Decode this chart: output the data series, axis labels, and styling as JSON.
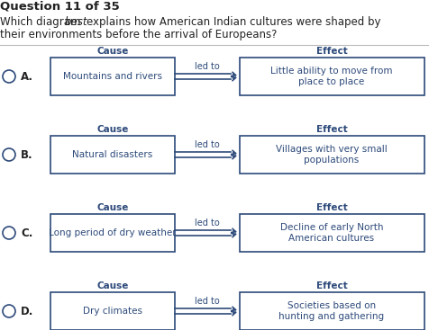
{
  "title": "Question 11 of 35",
  "background_color": "#ffffff",
  "box_edge_color": "#2d4a7a",
  "box_face_color": "#ffffff",
  "text_color": "#2d4a7a",
  "dark_text_color": "#222222",
  "arrow_color": "#2d4a7a",
  "separator_color": "#bbbbbb",
  "options": [
    {
      "letter": "A.",
      "cause_text": "Mountains and rivers",
      "effect_text": "Little ability to move from\nplace to place"
    },
    {
      "letter": "B.",
      "cause_text": "Natural disasters",
      "effect_text": "Villages with very small\npopulations"
    },
    {
      "letter": "C.",
      "cause_text": "Long period of dry weather",
      "effect_text": "Decline of early North\nAmerican cultures"
    },
    {
      "letter": "D.",
      "cause_text": "Dry climates",
      "effect_text": "Societies based on\nhunting and gathering"
    }
  ],
  "led_to_text": "led to",
  "cause_label": "Cause",
  "effect_label": "Effect"
}
